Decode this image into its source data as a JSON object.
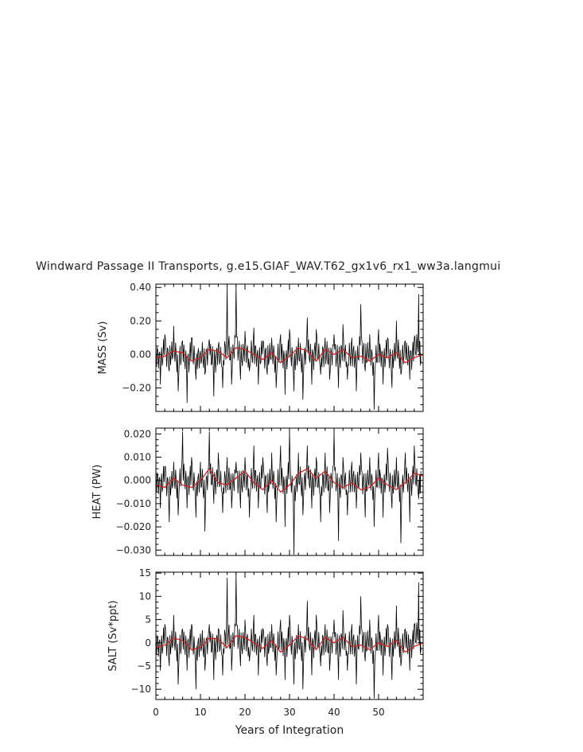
{
  "figure": {
    "title": "Windward Passage II Transports, g.e15.GIAF_WAV.T62_gx1v6_rx1_ww3a.langmui",
    "xlabel": "Years of Integration"
  },
  "colors": {
    "raw_series": "#000000",
    "smoothed_series": "#cc2222",
    "axes": "#000000"
  },
  "chart_data": [
    {
      "type": "line",
      "ylabel": "MASS (Sv)",
      "xlim": [
        0,
        60
      ],
      "ylim": [
        -0.34,
        0.42
      ],
      "x_ticks": [
        0,
        10,
        20,
        30,
        40,
        50
      ],
      "y_ticks": [
        0.4,
        0.2,
        0.0,
        -0.2
      ],
      "y_tick_labels": [
        "0.40",
        "0.20",
        "0.00",
        "−0.20"
      ],
      "x_tick_labels": [
        "",
        "",
        "",
        "",
        "",
        ""
      ],
      "grid": false,
      "series": [
        {
          "role": "raw",
          "x": [
            0,
            1,
            2,
            3,
            4,
            5,
            6,
            7,
            8,
            9,
            10,
            11,
            12,
            13,
            14,
            15,
            16,
            17,
            18,
            19,
            20,
            21,
            22,
            23,
            24,
            25,
            26,
            27,
            28,
            29,
            30,
            31,
            32,
            33,
            34,
            35,
            36,
            37,
            38,
            39,
            40,
            41,
            42,
            43,
            44,
            45,
            46,
            47,
            48,
            49,
            50,
            51,
            52,
            53,
            54,
            55,
            56,
            57,
            58,
            59,
            59.5
          ],
          "y": [
            0.05,
            -0.18,
            0.12,
            -0.1,
            0.17,
            -0.22,
            0.08,
            -0.29,
            0.1,
            -0.15,
            0.02,
            -0.12,
            0.09,
            -0.25,
            0.05,
            -0.2,
            0.41,
            -0.18,
            0.42,
            -0.15,
            0.14,
            -0.1,
            0.16,
            -0.18,
            0.08,
            -0.12,
            0.1,
            -0.2,
            0.12,
            -0.24,
            0.15,
            -0.22,
            0.1,
            -0.27,
            0.22,
            -0.18,
            0.15,
            -0.12,
            0.1,
            -0.15,
            0.12,
            -0.2,
            0.18,
            -0.15,
            0.1,
            -0.22,
            0.3,
            -0.1,
            0.12,
            -0.33,
            0.15,
            -0.18,
            0.1,
            -0.2,
            0.2,
            -0.12,
            0.08,
            -0.15,
            0.1,
            0.36,
            -0.05
          ]
        },
        {
          "role": "smoothed",
          "x": [
            0,
            2,
            4,
            6,
            8,
            10,
            12,
            14,
            16,
            18,
            20,
            22,
            24,
            26,
            28,
            30,
            32,
            34,
            36,
            38,
            40,
            42,
            44,
            46,
            48,
            50,
            52,
            54,
            56,
            58,
            60
          ],
          "y": [
            -0.02,
            -0.01,
            0.02,
            0.01,
            -0.04,
            -0.02,
            0.03,
            0.02,
            -0.02,
            0.04,
            0.03,
            0.0,
            -0.03,
            0.01,
            -0.05,
            -0.01,
            0.04,
            0.02,
            -0.04,
            0.03,
            0.0,
            0.03,
            -0.02,
            -0.01,
            -0.04,
            0.0,
            -0.02,
            0.01,
            -0.05,
            -0.02,
            0.0
          ]
        }
      ]
    },
    {
      "type": "line",
      "ylabel": "HEAT (PW)",
      "xlim": [
        0,
        60
      ],
      "ylim": [
        -0.0323,
        0.0225
      ],
      "x_ticks": [
        0,
        10,
        20,
        30,
        40,
        50
      ],
      "y_ticks": [
        0.02,
        0.01,
        0.0,
        -0.01,
        -0.02,
        -0.03
      ],
      "y_tick_labels": [
        "0.020",
        "0.010",
        "0.000",
        "−0.010",
        "−0.020",
        "−0.030"
      ],
      "x_tick_labels": [
        "",
        "",
        "",
        "",
        "",
        ""
      ],
      "grid": false,
      "series": [
        {
          "role": "raw",
          "x": [
            0,
            1,
            2,
            3,
            4,
            5,
            6,
            7,
            8,
            9,
            10,
            11,
            12,
            13,
            14,
            15,
            16,
            17,
            18,
            19,
            20,
            21,
            22,
            23,
            24,
            25,
            26,
            27,
            28,
            29,
            30,
            31,
            32,
            33,
            34,
            35,
            36,
            37,
            38,
            39,
            40,
            41,
            42,
            43,
            44,
            45,
            46,
            47,
            48,
            49,
            50,
            51,
            52,
            53,
            54,
            55,
            56,
            57,
            58,
            59,
            59.5
          ],
          "y": [
            0.005,
            -0.012,
            0.006,
            -0.018,
            0.008,
            -0.015,
            0.021,
            -0.012,
            0.01,
            -0.016,
            0.008,
            -0.022,
            0.021,
            -0.01,
            0.012,
            -0.014,
            0.01,
            -0.012,
            0.008,
            -0.012,
            0.01,
            -0.016,
            0.015,
            -0.012,
            0.01,
            -0.014,
            0.012,
            -0.018,
            0.015,
            -0.02,
            0.021,
            -0.032,
            0.012,
            -0.015,
            0.015,
            -0.012,
            0.01,
            -0.018,
            0.012,
            -0.014,
            0.021,
            -0.026,
            0.01,
            -0.015,
            0.008,
            -0.012,
            0.012,
            -0.016,
            0.01,
            -0.02,
            0.012,
            -0.016,
            0.014,
            -0.012,
            0.01,
            -0.027,
            0.012,
            -0.018,
            0.015,
            -0.008,
            0.004
          ]
        },
        {
          "role": "smoothed",
          "x": [
            0,
            2,
            4,
            6,
            8,
            10,
            12,
            14,
            16,
            18,
            20,
            22,
            24,
            26,
            28,
            30,
            32,
            34,
            36,
            38,
            40,
            42,
            44,
            46,
            48,
            50,
            52,
            54,
            56,
            58,
            60
          ],
          "y": [
            -0.002,
            -0.003,
            0.001,
            -0.002,
            -0.003,
            0.0,
            0.005,
            -0.001,
            -0.002,
            0.001,
            0.004,
            -0.001,
            -0.004,
            0.0,
            -0.005,
            -0.002,
            0.003,
            0.005,
            0.001,
            0.004,
            -0.001,
            -0.003,
            -0.001,
            -0.004,
            -0.003,
            0.001,
            -0.002,
            -0.004,
            -0.001,
            0.003,
            0.002
          ]
        }
      ]
    },
    {
      "type": "line",
      "ylabel": "SALT (Sv*ppt)",
      "xlim": [
        0,
        60
      ],
      "ylim": [
        -12.2,
        15.2
      ],
      "x_ticks": [
        0,
        10,
        20,
        30,
        40,
        50
      ],
      "y_ticks": [
        15,
        10,
        5,
        0,
        -5,
        -10
      ],
      "y_tick_labels": [
        "15",
        "10",
        "5",
        "0",
        "−5",
        "−10"
      ],
      "x_tick_labels": [
        "0",
        "10",
        "20",
        "30",
        "40",
        "50"
      ],
      "grid": false,
      "series": [
        {
          "role": "raw",
          "x": [
            0,
            1,
            2,
            3,
            4,
            5,
            6,
            7,
            8,
            9,
            10,
            11,
            12,
            13,
            14,
            15,
            16,
            17,
            18,
            19,
            20,
            21,
            22,
            23,
            24,
            25,
            26,
            27,
            28,
            29,
            30,
            31,
            32,
            33,
            34,
            35,
            36,
            37,
            38,
            39,
            40,
            41,
            42,
            43,
            44,
            45,
            46,
            47,
            48,
            49,
            50,
            51,
            52,
            53,
            54,
            55,
            56,
            57,
            58,
            59,
            59.5
          ],
          "y": [
            2,
            -6,
            4,
            -5,
            6,
            -9,
            3,
            -6,
            4,
            -10,
            2,
            -6,
            4,
            -8,
            3,
            -7,
            14,
            -6,
            15,
            -5,
            5,
            -4,
            6,
            -7,
            3,
            -5,
            4,
            -7,
            5,
            -8,
            6,
            -9,
            4,
            -10,
            9,
            -7,
            6,
            -5,
            4,
            -6,
            5,
            -8,
            7,
            -6,
            4,
            -9,
            10,
            -4,
            5,
            -12,
            6,
            -7,
            4,
            -8,
            8,
            -5,
            3,
            -6,
            4,
            13,
            -2
          ]
        },
        {
          "role": "smoothed",
          "x": [
            0,
            2,
            4,
            6,
            8,
            10,
            12,
            14,
            16,
            18,
            20,
            22,
            24,
            26,
            28,
            30,
            32,
            34,
            36,
            38,
            40,
            42,
            44,
            46,
            48,
            50,
            52,
            54,
            56,
            58,
            60
          ],
          "y": [
            -1,
            -0.5,
            1,
            0.5,
            -1.5,
            -1,
            1,
            0.8,
            -1,
            1.5,
            1.2,
            0,
            -1.2,
            0.5,
            -2,
            -0.5,
            1.5,
            0.8,
            -1.5,
            1.2,
            0,
            1.2,
            -0.8,
            -0.5,
            -1.5,
            0,
            -0.8,
            0.5,
            -2,
            -0.8,
            0
          ]
        }
      ]
    }
  ]
}
